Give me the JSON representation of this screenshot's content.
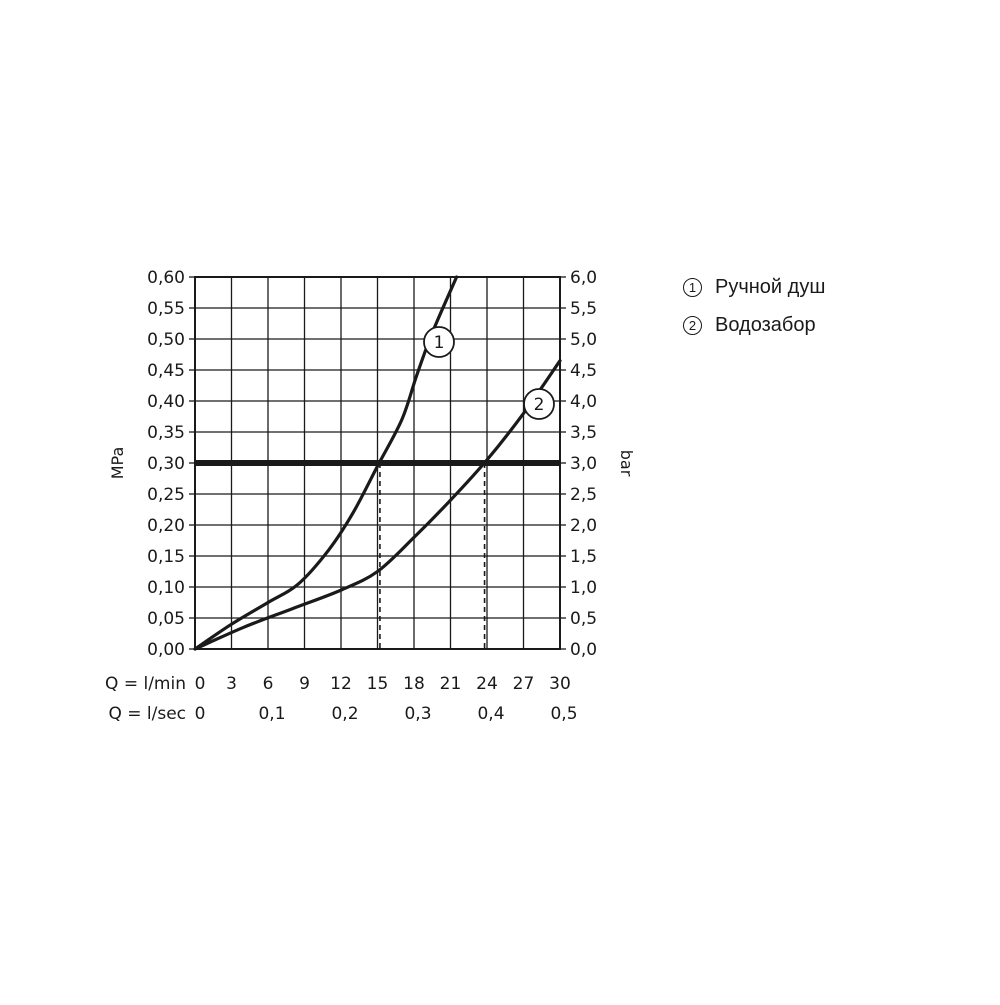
{
  "chart_data": {
    "type": "line",
    "x": {
      "label": "Q = l/min",
      "min": 0,
      "max": 30,
      "ticks": [
        0,
        3,
        6,
        9,
        12,
        15,
        18,
        21,
        24,
        27,
        30
      ]
    },
    "x2": {
      "label": "Q = l/sec",
      "ticks": [
        "0",
        "0,1",
        "0,2",
        "0,3",
        "0,4",
        "0,5"
      ],
      "values": [
        0,
        0.1,
        0.2,
        0.3,
        0.4,
        0.5
      ]
    },
    "y_left": {
      "label": "MPa",
      "min": 0,
      "max": 0.6,
      "ticks": [
        "0,00",
        "0,05",
        "0,10",
        "0,15",
        "0,20",
        "0,25",
        "0,30",
        "0,35",
        "0,40",
        "0,45",
        "0,50",
        "0,55",
        "0,60"
      ]
    },
    "y_right": {
      "label": "bar",
      "min": 0,
      "max": 6,
      "ticks": [
        "0,0",
        "0,5",
        "1,0",
        "1,5",
        "2,0",
        "2,5",
        "3,0",
        "3,5",
        "4,0",
        "4,5",
        "5,0",
        "5,5",
        "6,0"
      ]
    },
    "grid": true,
    "reference_line": {
      "y": 0.3
    },
    "series": [
      {
        "name": "Ручной душ",
        "marker": "1",
        "x": [
          0,
          3,
          6,
          8.5,
          11,
          13,
          15,
          17,
          18.2,
          19.5,
          21.5
        ],
        "y": [
          0,
          0.04,
          0.075,
          0.105,
          0.16,
          0.22,
          0.295,
          0.37,
          0.44,
          0.51,
          0.6
        ],
        "intersection_x": 15.2
      },
      {
        "name": "Водозабор",
        "marker": "2",
        "x": [
          0,
          4,
          8,
          12,
          15,
          18,
          21,
          24,
          27,
          30
        ],
        "y": [
          0,
          0.035,
          0.065,
          0.095,
          0.125,
          0.18,
          0.24,
          0.305,
          0.38,
          0.465
        ],
        "intersection_x": 23.8
      }
    ]
  },
  "legend": [
    {
      "marker": "1",
      "label": "Ручной душ"
    },
    {
      "marker": "2",
      "label": "Водозабор"
    }
  ]
}
